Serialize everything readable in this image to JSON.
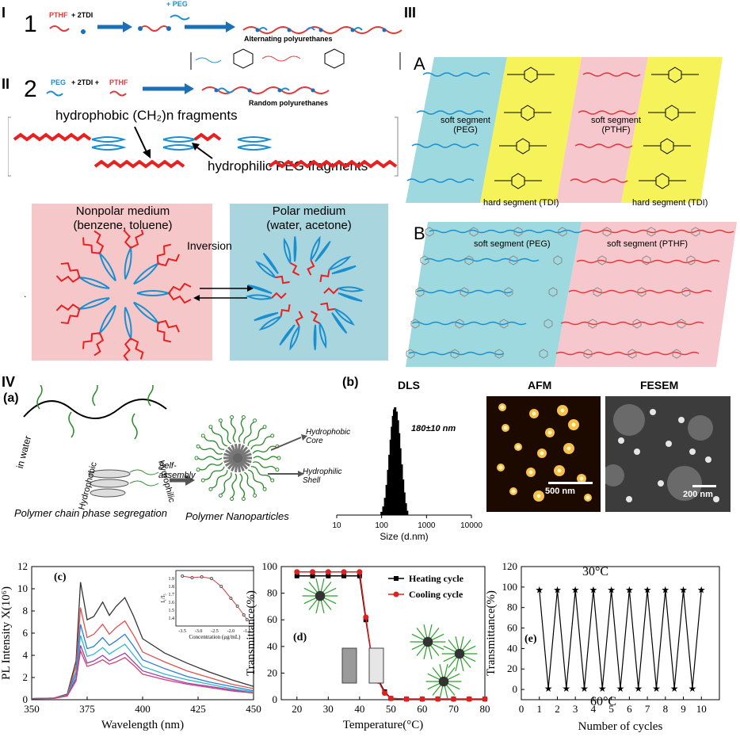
{
  "section_labels": {
    "I": "I",
    "II": "II",
    "III": "III",
    "IV": "IV"
  },
  "panel_I": {
    "number": "1",
    "ptHF": "PTHF",
    "plus_2tdi": "+ 2TDI",
    "plus_peg": "+ PEG",
    "caption": "Alternating polyurethanes"
  },
  "panel_II": {
    "number": "2",
    "peg": "PEG",
    "plus_2tdi": "+ 2TDI +",
    "pthf": "PTHF",
    "caption": "Random polyurethanes",
    "hydrophobic_label": "hydrophobic (CH₂)n fragments",
    "hydrophilic_label": "hydrophilic PEG fragments",
    "nonpolar_title": "Nonpolar medium",
    "nonpolar_sub": "(benzene, toluene)",
    "polar_title": "Polar medium",
    "polar_sub": "(water, acetone)",
    "inversion": "Inversion"
  },
  "panel_III": {
    "A": "A",
    "B": "B",
    "soft_peg": "soft segment\n(PEG)",
    "soft_pthf": "soft segment\n(PTHF)",
    "hard_tdi_1": "hard segment (TDI)",
    "hard_tdi_2": "hard segment (TDI)",
    "b_soft_peg": "soft segment (PEG)",
    "b_soft_pthf": "soft segment (PTHF)",
    "colors": {
      "cyan": "#9fd9e0",
      "yellow": "#f5f25a",
      "pink": "#f6c7cc",
      "blue_chain": "#1a8fd0",
      "red_chain": "#e03a3a"
    }
  },
  "panel_IV": {
    "a_label": "(a)",
    "b_label": "(b)",
    "in_water": "in water",
    "hydrophobic": "Hydrophobic",
    "hydrophilic": "Hydrophilic",
    "self_assembly": "Self-\nassembly",
    "hydrophobic_core": "Hydrophobic\nCore",
    "hydrophilic_shell": "Hydrophilic\nShell",
    "seg_caption": "Polymer chain phase segregation",
    "np_caption": "Polymer Nanoparticles",
    "dls_title": "DLS",
    "afm_title": "AFM",
    "fesem_title": "FESEM",
    "dls_size": "180±10 nm",
    "afm_scale": "500 nm",
    "fesem_scale": "200 nm",
    "dls_xlabel": "Size (d.nm)",
    "dls_ticks": [
      "10",
      "100",
      "1000",
      "10000"
    ]
  },
  "chart_data": [
    {
      "type": "bar",
      "panel": "DLS",
      "title": "DLS",
      "xlabel": "Size (d.nm)",
      "x_scale": "log",
      "xlim": [
        10,
        10000
      ],
      "x": [
        100,
        110,
        120,
        130,
        140,
        150,
        160,
        170,
        180,
        190,
        200,
        215,
        230,
        245,
        260,
        280,
        300,
        320,
        345,
        370
      ],
      "values": [
        3,
        8,
        16,
        28,
        42,
        56,
        70,
        82,
        92,
        98,
        100,
        96,
        88,
        76,
        62,
        47,
        33,
        21,
        11,
        4
      ],
      "annotations": [
        "180±10 nm"
      ]
    },
    {
      "type": "line",
      "panel": "(c)",
      "xlabel": "Wavelength (nm)",
      "ylabel": "PL Intensity X(10⁶)",
      "xlim": [
        350,
        450
      ],
      "ylim": [
        0,
        12
      ],
      "xticks": [
        "350",
        "375",
        "400",
        "425",
        "450"
      ],
      "yticks": [
        "0",
        "2",
        "4",
        "6",
        "8",
        "10",
        "12"
      ],
      "x": [
        350,
        360,
        366,
        370,
        372,
        375,
        378,
        382,
        385,
        388,
        392,
        396,
        400,
        410,
        420,
        430,
        440,
        450
      ],
      "series": [
        {
          "values": [
            0.1,
            0.15,
            0.5,
            3.5,
            10.6,
            7.2,
            7.5,
            8.8,
            7.6,
            8.4,
            9.2,
            7.5,
            5.5,
            4.2,
            3.3,
            2.5,
            1.8,
            1.2
          ],
          "color": "#333333"
        },
        {
          "values": [
            0.1,
            0.15,
            0.45,
            3.0,
            8.3,
            5.6,
            5.9,
            6.8,
            5.9,
            6.5,
            7.1,
            5.8,
            4.3,
            3.4,
            2.6,
            2.0,
            1.4,
            1.0
          ],
          "color": "#e05050"
        },
        {
          "values": [
            0.1,
            0.14,
            0.4,
            2.5,
            6.8,
            4.6,
            4.8,
            5.6,
            4.9,
            5.3,
            5.9,
            4.8,
            3.6,
            2.8,
            2.1,
            1.6,
            1.2,
            0.8
          ],
          "color": "#2a7fd4"
        },
        {
          "values": [
            0.1,
            0.13,
            0.38,
            2.2,
            5.8,
            3.9,
            4.1,
            4.7,
            4.1,
            4.5,
            5.0,
            4.0,
            3.0,
            2.3,
            1.8,
            1.4,
            1.0,
            0.7
          ],
          "color": "#30b8c8"
        },
        {
          "values": [
            0.1,
            0.12,
            0.35,
            1.9,
            4.9,
            3.3,
            3.5,
            4.0,
            3.5,
            3.8,
            4.2,
            3.4,
            2.6,
            2.0,
            1.5,
            1.2,
            0.9,
            0.6
          ],
          "color": "#9b3fb0"
        },
        {
          "values": [
            0.1,
            0.12,
            0.33,
            1.7,
            4.4,
            3.0,
            3.2,
            3.6,
            3.2,
            3.4,
            3.8,
            3.1,
            2.3,
            1.8,
            1.4,
            1.1,
            0.8,
            0.6
          ],
          "color": "#d04070"
        }
      ]
    },
    {
      "type": "line",
      "panel": "(c) inset",
      "xlabel": "Concentration (μg/mL)",
      "ylabel": "I₁/I₃",
      "xlim": [
        -3.7,
        -1.3
      ],
      "ylim": [
        1.3,
        2.0
      ],
      "xticks": [
        "-3.5",
        "-3.0",
        "-2.5",
        "-2.0",
        "-1.5"
      ],
      "yticks": [
        "1.4",
        "1.5",
        "1.6",
        "1.7",
        "1.8",
        "1.9"
      ],
      "x": [
        -3.5,
        -3.2,
        -2.9,
        -2.6,
        -2.3,
        -2.0,
        -1.8,
        -1.6,
        -1.5
      ],
      "values": [
        1.93,
        1.91,
        1.92,
        1.9,
        1.8,
        1.65,
        1.55,
        1.44,
        1.38
      ]
    },
    {
      "type": "line",
      "panel": "(d)",
      "xlabel": "Temperature(°C)",
      "ylabel": "Transmittance(%)",
      "xlim": [
        15,
        80
      ],
      "ylim": [
        0,
        100
      ],
      "xticks": [
        "20",
        "30",
        "40",
        "50",
        "60",
        "70",
        "80"
      ],
      "yticks": [
        "0",
        "20",
        "40",
        "60",
        "80",
        "100"
      ],
      "series": [
        {
          "name": "Heating cycle",
          "x": [
            20,
            25,
            30,
            35,
            40,
            42,
            44,
            46,
            48,
            50,
            55,
            60,
            65,
            70,
            75,
            80
          ],
          "values": [
            93,
            93,
            93,
            93,
            93,
            60,
            30,
            15,
            6,
            1,
            0.5,
            0.5,
            0.5,
            0.5,
            0.5,
            0.5
          ],
          "color": "#000000"
        },
        {
          "name": "Cooling cycle",
          "x": [
            20,
            25,
            30,
            35,
            40,
            42,
            44,
            46,
            48,
            50,
            55,
            60,
            65,
            70,
            75,
            80
          ],
          "values": [
            96,
            96,
            96,
            96,
            96,
            62,
            30,
            14,
            5,
            1,
            0.5,
            0.5,
            0.5,
            0.5,
            0.5,
            0.5
          ],
          "color": "#e02020"
        }
      ],
      "legend": "top-right"
    },
    {
      "type": "line",
      "panel": "(e)",
      "xlabel": "Number of cycles",
      "ylabel": "Transmittance(%)",
      "xlim": [
        0,
        11
      ],
      "ylim": [
        -10,
        120
      ],
      "xticks": [
        "0",
        "1",
        "2",
        "3",
        "4",
        "5",
        "6",
        "7",
        "8",
        "9",
        "10"
      ],
      "yticks": [
        "0",
        "20",
        "40",
        "60",
        "80",
        "100",
        "120"
      ],
      "x": [
        1,
        1.5,
        2,
        2.5,
        3,
        3.5,
        4,
        4.5,
        5,
        5.5,
        6,
        6.5,
        7,
        7.5,
        8,
        8.5,
        9,
        9.5,
        10
      ],
      "values": [
        97,
        1,
        97,
        1,
        97,
        1,
        97,
        1,
        97,
        1,
        97,
        1,
        97,
        1,
        97,
        1,
        97,
        1,
        97
      ],
      "annotations": [
        "30°C",
        "60°C"
      ]
    }
  ],
  "chart_text": {
    "c_label": "(c)",
    "d_label": "(d)",
    "e_label": "(e)",
    "e_30": "30°C",
    "e_60": "60°C"
  }
}
